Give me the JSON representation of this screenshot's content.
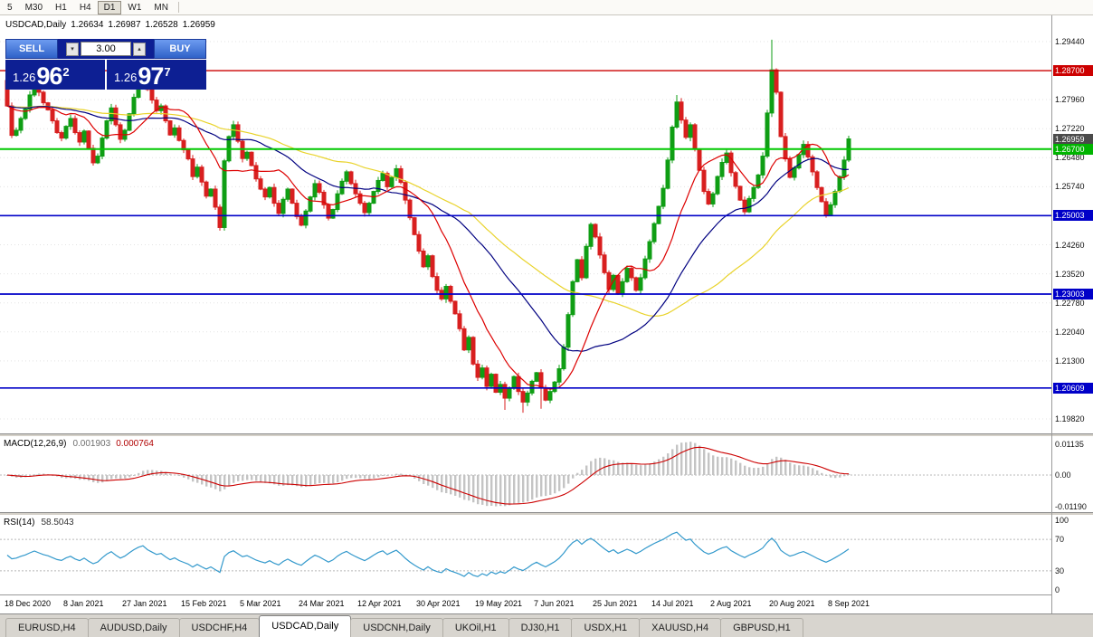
{
  "toolbar": {
    "timeframes": [
      {
        "label": "5",
        "active": false
      },
      {
        "label": "M30",
        "active": false
      },
      {
        "label": "H1",
        "active": false
      },
      {
        "label": "H4",
        "active": false
      },
      {
        "label": "D1",
        "active": true
      },
      {
        "label": "W1",
        "active": false
      },
      {
        "label": "MN",
        "active": false
      }
    ]
  },
  "chart": {
    "header": {
      "symbol": "USDCAD,Daily",
      "open": "1.26634",
      "high": "1.26987",
      "low": "1.26528",
      "close": "1.26959"
    },
    "trade_panel": {
      "sell_label": "SELL",
      "buy_label": "BUY",
      "volume": "3.00",
      "down_icon": "▾",
      "up_icon": "▴",
      "sell_price": {
        "prefix": "1.26",
        "big": "96",
        "sup": "2"
      },
      "buy_price": {
        "prefix": "1.26",
        "big": "97",
        "sup": "7"
      }
    }
  },
  "indicators": {
    "macd_label": "MACD(12,26,9)",
    "macd_value_main": "0.001903",
    "macd_value_signal": "0.000764",
    "rsi_label": "RSI(14)",
    "rsi_value": "58.5043"
  },
  "chart_data": {
    "type": "candlestick",
    "symbol": "USDCAD",
    "timeframe": "Daily",
    "last_price": 1.26959,
    "first_open": 1.2845,
    "closes": [
      1.278,
      1.2705,
      1.2718,
      1.2748,
      1.2772,
      1.2808,
      1.2842,
      1.2815,
      1.2788,
      1.277,
      1.2742,
      1.2712,
      1.2698,
      1.2728,
      1.2748,
      1.2712,
      1.2688,
      1.2716,
      1.2672,
      1.2635,
      1.2652,
      1.2698,
      1.2742,
      1.2775,
      1.2732,
      1.2695,
      1.2718,
      1.276,
      1.2802,
      1.284,
      1.2862,
      1.2822,
      1.2795,
      1.2768,
      1.278,
      1.2742,
      1.2706,
      1.2724,
      1.2692,
      1.2668,
      1.2645,
      1.26,
      1.2624,
      1.2586,
      1.255,
      1.2568,
      1.2522,
      1.247,
      1.264,
      1.2702,
      1.2732,
      1.269,
      1.2646,
      1.2662,
      1.2628,
      1.2594,
      1.2568,
      1.2548,
      1.2572,
      1.2532,
      1.2506,
      1.2542,
      1.2568,
      1.2532,
      1.2498,
      1.2476,
      1.2512,
      1.2548,
      1.2582,
      1.256,
      1.2528,
      1.2494,
      1.2516,
      1.2556,
      1.2588,
      1.2612,
      1.2582,
      1.2556,
      1.2532,
      1.2508,
      1.2532,
      1.2562,
      1.259,
      1.2608,
      1.2574,
      1.2598,
      1.262,
      1.2585,
      1.254,
      1.2495,
      1.2452,
      1.241,
      1.237,
      1.2398,
      1.2345,
      1.231,
      1.2288,
      1.232,
      1.2282,
      1.225,
      1.2212,
      1.2158,
      1.219,
      1.2122,
      1.2088,
      1.2112,
      1.2065,
      1.2096,
      1.205,
      1.207,
      1.2035,
      1.206,
      1.209,
      1.2052,
      1.2025,
      1.2048,
      1.2078,
      1.21,
      1.2062,
      1.203,
      1.2052,
      1.2076,
      1.211,
      1.2165,
      1.2248,
      1.2332,
      1.2388,
      1.2342,
      1.2422,
      1.2478,
      1.2446,
      1.24,
      1.2355,
      1.2312,
      1.2348,
      1.23,
      1.2332,
      1.2366,
      1.2342,
      1.231,
      1.2342,
      1.239,
      1.2434,
      1.248,
      1.2524,
      1.257,
      1.2642,
      1.2726,
      1.279,
      1.2744,
      1.27,
      1.2732,
      1.267,
      1.2616,
      1.2562,
      1.253,
      1.2556,
      1.26,
      1.2636,
      1.266,
      1.261,
      1.2575,
      1.254,
      1.251,
      1.2544,
      1.2572,
      1.2604,
      1.2652,
      1.2762,
      1.2872,
      1.2815,
      1.2702,
      1.2645,
      1.2598,
      1.2622,
      1.2656,
      1.2682,
      1.265,
      1.2612,
      1.2572,
      1.2536,
      1.2502,
      1.2528,
      1.2562,
      1.26,
      1.2642,
      1.2696
    ],
    "spikes": [
      {
        "i": 6,
        "h": 1.2892
      },
      {
        "i": 30,
        "h": 1.2882
      },
      {
        "i": 47,
        "l": 1.2462
      },
      {
        "i": 110,
        "l": 1.2005
      },
      {
        "i": 114,
        "l": 1.1998
      },
      {
        "i": 118,
        "l": 1.2008
      },
      {
        "i": 148,
        "h": 1.2808
      },
      {
        "i": 169,
        "h": 1.2949
      }
    ],
    "lines": [
      {
        "price": 1.287,
        "color": "#cc0000",
        "width": 1.3,
        "name": "hline-resistance-1287"
      },
      {
        "price": 1.267,
        "color": "#00c800",
        "width": 2,
        "name": "hline-level-1267"
      },
      {
        "price": 1.25003,
        "color": "#0000c8",
        "width": 1.7,
        "name": "hline-support-1250"
      },
      {
        "price": 1.23003,
        "color": "#0000c8",
        "width": 1.7,
        "name": "hline-support-1230"
      },
      {
        "price": 1.20609,
        "color": "#0000c8",
        "width": 1.7,
        "name": "hline-support-1206"
      }
    ],
    "axis_ticks": [
      "1.29440",
      "1.27960",
      "1.27220",
      "1.26480",
      "1.25740",
      "1.24260",
      "1.23520",
      "1.22780",
      "1.22040",
      "1.21300",
      "1.19820"
    ],
    "axis_badges": [
      {
        "text": "1.28700",
        "price": 1.287,
        "bg": "#cc0000"
      },
      {
        "text": "1.26959",
        "price": 1.26959,
        "bg": "#4a4a4a"
      },
      {
        "text": "1.26700",
        "price": 1.267,
        "bg": "#00b400"
      },
      {
        "text": "1.25003",
        "price": 1.25003,
        "bg": "#0000c8"
      },
      {
        "text": "1.23003",
        "price": 1.23003,
        "bg": "#0000c8"
      },
      {
        "text": "1.20609",
        "price": 1.20609,
        "bg": "#0000c8"
      }
    ],
    "date_labels": [
      {
        "text": "18 Dec 2020",
        "bar": 1
      },
      {
        "text": "8 Jan 2021",
        "bar": 14
      },
      {
        "text": "27 Jan 2021",
        "bar": 27
      },
      {
        "text": "15 Feb 2021",
        "bar": 40
      },
      {
        "text": "5 Mar 2021",
        "bar": 53
      },
      {
        "text": "24 Mar 2021",
        "bar": 66
      },
      {
        "text": "12 Apr 2021",
        "bar": 79
      },
      {
        "text": "30 Apr 2021",
        "bar": 92
      },
      {
        "text": "19 May 2021",
        "bar": 105
      },
      {
        "text": "7 Jun 2021",
        "bar": 118
      },
      {
        "text": "25 Jun 2021",
        "bar": 131
      },
      {
        "text": "14 Jul 2021",
        "bar": 144
      },
      {
        "text": "2 Aug 2021",
        "bar": 157
      },
      {
        "text": "20 Aug 2021",
        "bar": 170
      },
      {
        "text": "8 Sep 2021",
        "bar": 183
      }
    ],
    "macd_axis": [
      {
        "text": "0.01135",
        "y": 8
      },
      {
        "text": "0.00",
        "y": 42
      },
      {
        "text": "-0.01190",
        "y": 77
      }
    ],
    "rsi_axis": [
      {
        "text": "100",
        "v": 100
      },
      {
        "text": "70",
        "v": 70
      },
      {
        "text": "30",
        "v": 30
      },
      {
        "text": "0",
        "v": 0
      }
    ],
    "rsi_levels": [
      70,
      30
    ],
    "colors": {
      "up": "#0f9e14",
      "down": "#d81f1f",
      "ma_fast": "#dd0000",
      "ma_mid": "#000080",
      "ma_slow": "#e9d32b",
      "macd_hist": "#c4c4c4",
      "macd_signal": "#cc0000",
      "rsi_line": "#3399cc",
      "grid": "#e3e3e3"
    }
  },
  "tabs": [
    {
      "label": "EURUSD,H4",
      "active": false
    },
    {
      "label": "AUDUSD,Daily",
      "active": false
    },
    {
      "label": "USDCHF,H4",
      "active": false
    },
    {
      "label": "USDCAD,Daily",
      "active": true
    },
    {
      "label": "USDCNH,Daily",
      "active": false
    },
    {
      "label": "UKOil,H1",
      "active": false
    },
    {
      "label": "DJ30,H1",
      "active": false
    },
    {
      "label": "USDX,H1",
      "active": false
    },
    {
      "label": "XAUUSD,H4",
      "active": false
    },
    {
      "label": "GBPUSD,H1",
      "active": false
    }
  ]
}
